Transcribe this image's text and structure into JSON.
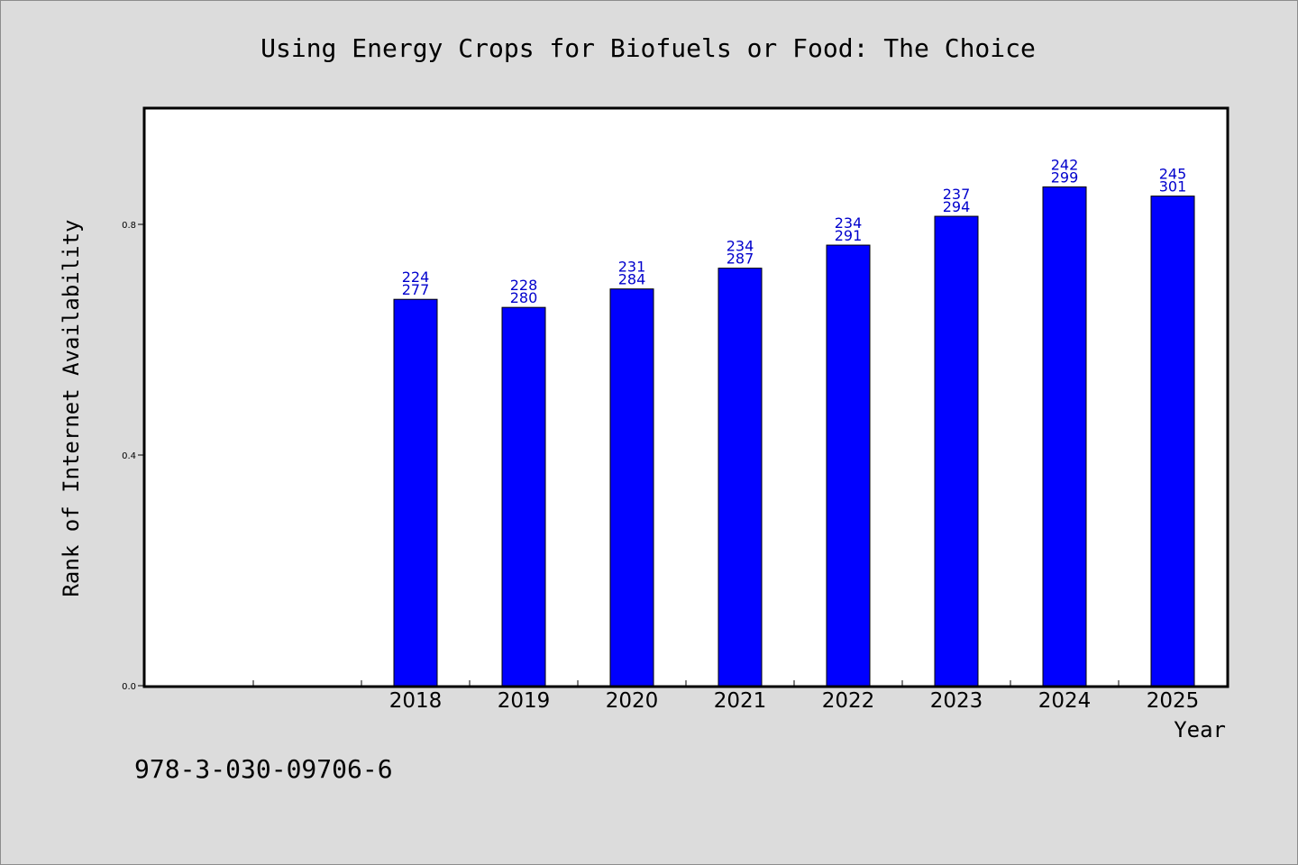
{
  "chart_data": {
    "type": "bar",
    "title": "Using Energy Crops for Biofuels or Food: The Choice",
    "xlabel": "Year",
    "ylabel": "Rank of Internet Availability",
    "categories": [
      "2018",
      "2019",
      "2020",
      "2021",
      "2022",
      "2023",
      "2024",
      "2025"
    ],
    "values": [
      0.67,
      0.656,
      0.688,
      0.724,
      0.764,
      0.814,
      0.865,
      0.849
    ],
    "data_labels_top": [
      "224",
      "228",
      "231",
      "234",
      "234",
      "237",
      "242",
      "245"
    ],
    "data_labels_bottom": [
      "277",
      "280",
      "284",
      "287",
      "291",
      "294",
      "299",
      "301"
    ],
    "x_slots": 10,
    "first_category_slot": 2,
    "ylim": [
      0,
      1.0
    ],
    "yticks": [
      0.0,
      0.4,
      0.8
    ],
    "ytick_labels": [
      "0.0",
      "0.4",
      "0.8"
    ],
    "grid": false,
    "legend": "none",
    "bar_color": "#0000ff",
    "label_color": "#0000cc"
  },
  "footer": {
    "code": "978-3-030-09706-6"
  }
}
